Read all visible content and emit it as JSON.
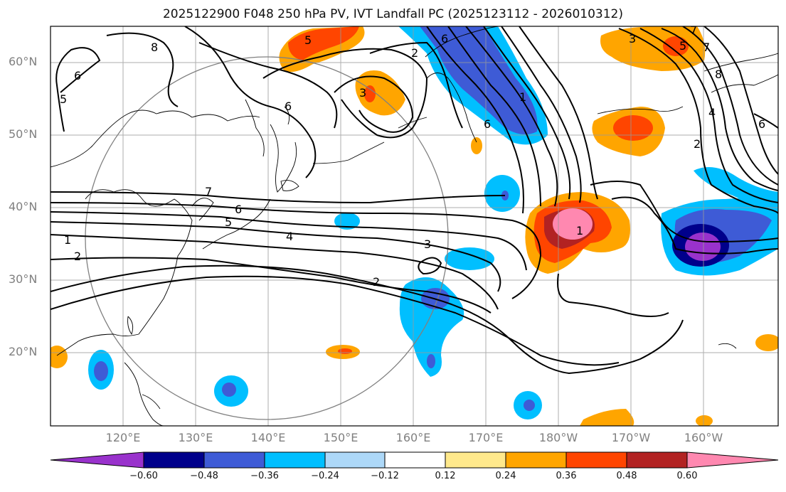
{
  "title": "2025122900 F048 250 hPa PV, IVT Landfall PC (2025123112 - 2026010312)",
  "lat_labels": [
    "60°N",
    "50°N",
    "40°N",
    "30°N",
    "20°N"
  ],
  "lon_labels": [
    "120°E",
    "130°E",
    "140°E",
    "150°E",
    "160°E",
    "170°E",
    "180°W",
    "170°W",
    "160°W"
  ],
  "colorbar": {
    "tick_labels": [
      "−0.60",
      "−0.48",
      "−0.36",
      "−0.24",
      "−0.12",
      "0.12",
      "0.24",
      "0.36",
      "0.48",
      "0.60"
    ],
    "colors": [
      "#9932cc",
      "#00008b",
      "#3e5bd6",
      "#00bfff",
      "#add8f8",
      "#ffffff",
      "#ffe98c",
      "#ffa500",
      "#ff4500",
      "#b22222",
      "#ff88b0"
    ]
  },
  "contour_labels": [
    "5",
    "8",
    "6",
    "5",
    "3",
    "6",
    "1",
    "6",
    "7",
    "2",
    "5",
    "3",
    "7",
    "8",
    "6",
    "4",
    "2",
    "6",
    "7",
    "6",
    "5",
    "4",
    "1",
    "2",
    "3",
    "2",
    "1"
  ]
}
